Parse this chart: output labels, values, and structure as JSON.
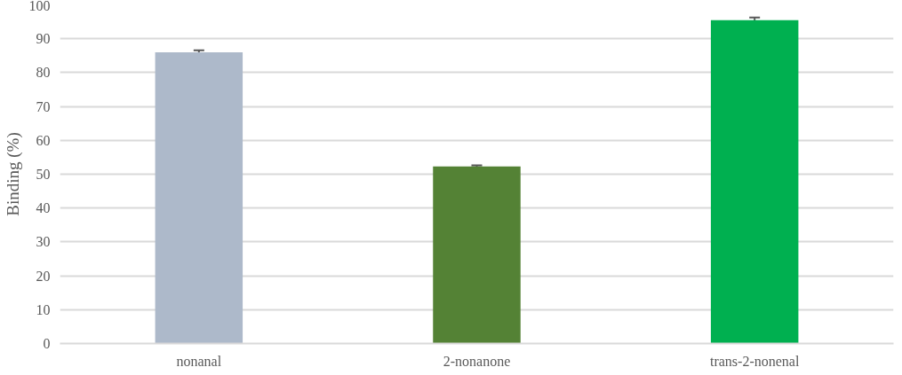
{
  "chart_data": {
    "type": "bar",
    "ylabel": "Binding (%)",
    "categories": [
      "nonanal",
      "2-nonanone",
      "trans-2-nonenal"
    ],
    "values": [
      86,
      52.3,
      95.5
    ],
    "colors": [
      "#adb9ca",
      "#548235",
      "#00b050"
    ],
    "errors": [
      0.6,
      0.3,
      0.8
    ],
    "ylim": [
      0,
      100
    ],
    "yticks": [
      0,
      10,
      20,
      30,
      40,
      50,
      60,
      70,
      80,
      90,
      100
    ],
    "grid": "y"
  }
}
